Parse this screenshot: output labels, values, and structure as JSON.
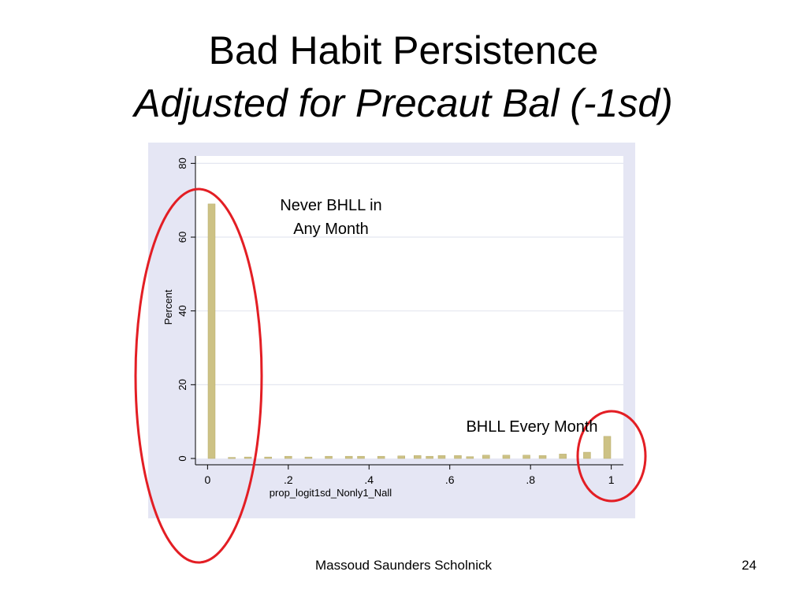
{
  "slide": {
    "title": "Bad Habit Persistence",
    "subtitle": "Adjusted for Precaut Bal (-1sd)",
    "footer": "Massoud Saunders Scholnick",
    "page_number": "24"
  },
  "chart_data": {
    "type": "bar",
    "xlabel": "prop_logit1sd_Nonly1_Nall",
    "ylabel": "Percent",
    "xlim": [
      -0.03,
      1.03
    ],
    "ylim": [
      0,
      82
    ],
    "xticks": [
      0,
      0.2,
      0.4,
      0.6,
      0.8,
      1
    ],
    "xtick_labels": [
      "0",
      ".2",
      ".4",
      ".6",
      ".8",
      "1"
    ],
    "yticks": [
      0,
      20,
      40,
      60,
      80
    ],
    "ytick_labels": [
      "0",
      "20",
      "40",
      "60",
      "80"
    ],
    "grid": true,
    "bar_color": "#cdc285",
    "plot_background": "#e5e6f4",
    "bars": [
      {
        "x": 0.01,
        "y": 69
      },
      {
        "x": 0.06,
        "y": 0.3
      },
      {
        "x": 0.1,
        "y": 0.4
      },
      {
        "x": 0.15,
        "y": 0.4
      },
      {
        "x": 0.2,
        "y": 0.6
      },
      {
        "x": 0.25,
        "y": 0.4
      },
      {
        "x": 0.3,
        "y": 0.6
      },
      {
        "x": 0.35,
        "y": 0.6
      },
      {
        "x": 0.38,
        "y": 0.6
      },
      {
        "x": 0.43,
        "y": 0.6
      },
      {
        "x": 0.48,
        "y": 0.7
      },
      {
        "x": 0.52,
        "y": 0.8
      },
      {
        "x": 0.55,
        "y": 0.6
      },
      {
        "x": 0.58,
        "y": 0.8
      },
      {
        "x": 0.62,
        "y": 0.8
      },
      {
        "x": 0.65,
        "y": 0.5
      },
      {
        "x": 0.69,
        "y": 0.9
      },
      {
        "x": 0.74,
        "y": 0.9
      },
      {
        "x": 0.79,
        "y": 0.9
      },
      {
        "x": 0.83,
        "y": 0.8
      },
      {
        "x": 0.88,
        "y": 1.2
      },
      {
        "x": 0.94,
        "y": 1.7
      },
      {
        "x": 0.99,
        "y": 6
      }
    ],
    "annotations": {
      "never": "Never BHLL in\nAny Month",
      "every": "BHLL Every Month"
    },
    "highlight_color": "#e31e24"
  }
}
